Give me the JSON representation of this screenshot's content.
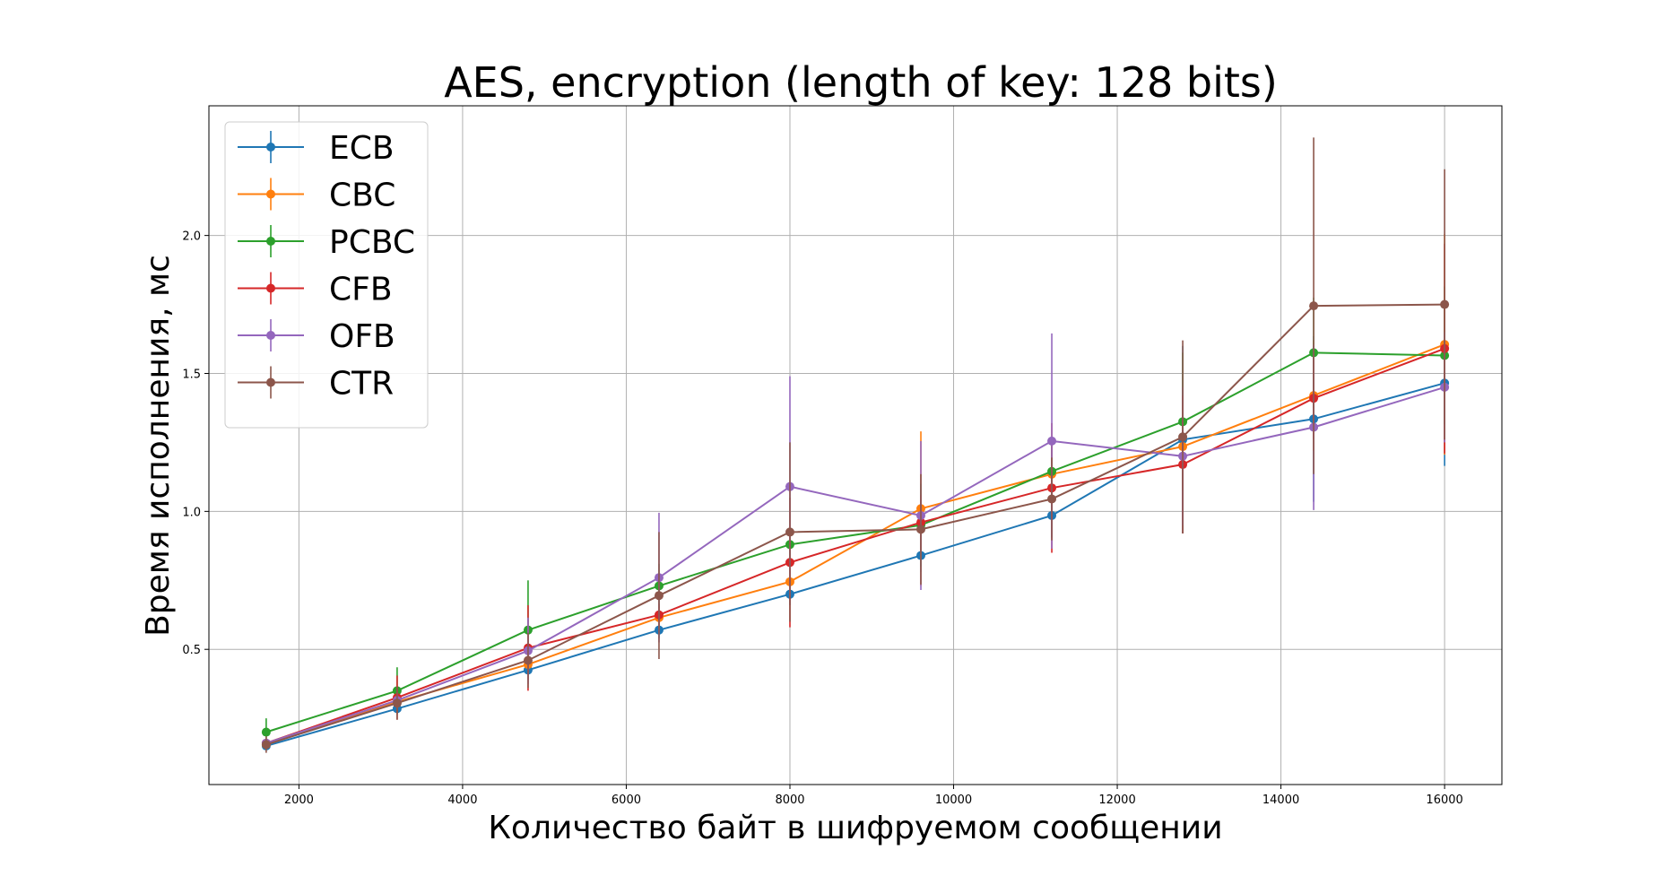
{
  "chart_data": {
    "type": "line",
    "title": "AES, encryption (length of key: 128 bits)",
    "xlabel": "Количество байт в шифруемом сообщении",
    "ylabel": "Время исполнения, мс",
    "xlim": [
      900,
      16700
    ],
    "ylim": [
      0.01,
      2.47
    ],
    "xticks": [
      2000,
      4000,
      6000,
      8000,
      10000,
      12000,
      14000,
      16000
    ],
    "yticks": [
      0.5,
      1.0,
      1.5,
      2.0
    ],
    "grid": true,
    "legend_position": "top-left",
    "x": [
      1600,
      3200,
      4800,
      6400,
      8000,
      9600,
      11200,
      12800,
      14400,
      16000
    ],
    "series": [
      {
        "name": "ECB",
        "color": "#1f77b4",
        "values": [
          0.15,
          0.285,
          0.425,
          0.57,
          0.7,
          0.84,
          0.985,
          1.26,
          1.335,
          1.465
        ],
        "errors": [
          0.01,
          0.015,
          0.02,
          0.03,
          0.04,
          0.06,
          0.08,
          0.34,
          0.3,
          0.3
        ]
      },
      {
        "name": "CBC",
        "color": "#ff7f0e",
        "values": [
          0.155,
          0.31,
          0.445,
          0.615,
          0.745,
          1.01,
          1.135,
          1.235,
          1.42,
          1.605
        ],
        "errors": [
          0.01,
          0.015,
          0.025,
          0.04,
          0.05,
          0.28,
          0.1,
          0.15,
          0.2,
          0.4
        ]
      },
      {
        "name": "PCBC",
        "color": "#2ca02c",
        "values": [
          0.2,
          0.35,
          0.57,
          0.73,
          0.88,
          0.95,
          1.145,
          1.325,
          1.575,
          1.565
        ],
        "errors": [
          0.05,
          0.085,
          0.18,
          0.08,
          0.05,
          0.15,
          0.1,
          0.25,
          0.2,
          0.25
        ]
      },
      {
        "name": "CFB",
        "color": "#d62728",
        "values": [
          0.16,
          0.325,
          0.505,
          0.625,
          0.815,
          0.96,
          1.085,
          1.17,
          1.41,
          1.59
        ],
        "errors": [
          0.01,
          0.08,
          0.155,
          0.04,
          0.235,
          0.1,
          0.235,
          0.25,
          0.15,
          0.38
        ]
      },
      {
        "name": "OFB",
        "color": "#9467bd",
        "values": [
          0.16,
          0.315,
          0.495,
          0.76,
          1.09,
          0.985,
          1.255,
          1.2,
          1.305,
          1.45
        ],
        "errors": [
          0.01,
          0.03,
          0.12,
          0.235,
          0.4,
          0.27,
          0.39,
          0.25,
          0.3,
          0.2
        ]
      },
      {
        "name": "CTR",
        "color": "#8c564b",
        "values": [
          0.155,
          0.305,
          0.46,
          0.695,
          0.925,
          0.935,
          1.045,
          1.27,
          1.745,
          1.75
        ],
        "errors": [
          0.03,
          0.06,
          0.1,
          0.23,
          0.325,
          0.2,
          0.15,
          0.35,
          0.61,
          0.49
        ]
      }
    ]
  }
}
